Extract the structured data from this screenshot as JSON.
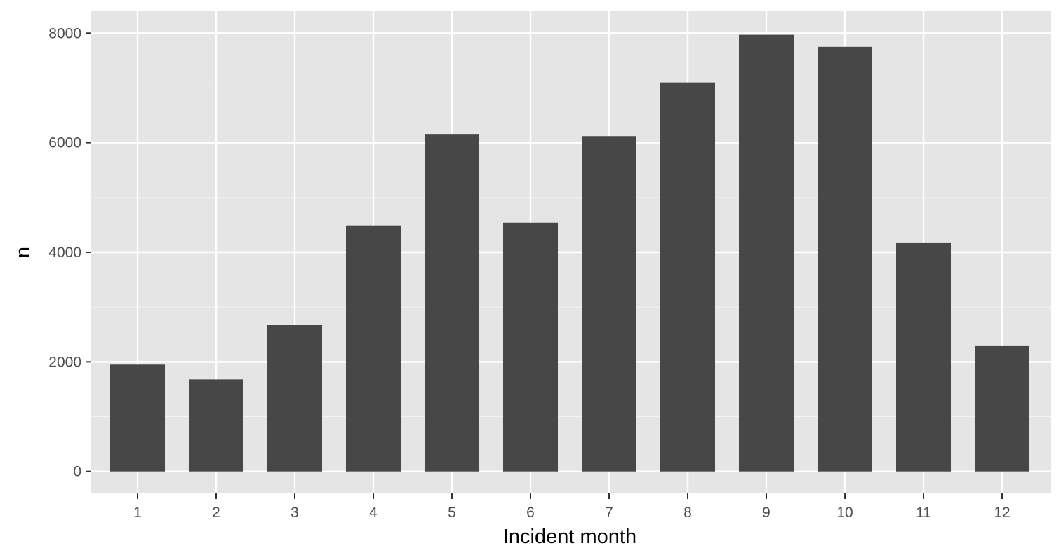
{
  "chart_data": {
    "type": "bar",
    "xlabel": "Incident month",
    "ylabel": "n",
    "categories": [
      "1",
      "2",
      "3",
      "4",
      "5",
      "6",
      "7",
      "8",
      "9",
      "10",
      "11",
      "12"
    ],
    "values": [
      1950,
      1680,
      2680,
      4490,
      6160,
      4540,
      6120,
      7100,
      7970,
      7750,
      4180,
      2300
    ],
    "ylim": [
      -400,
      8400
    ],
    "yticks": [
      0,
      2000,
      4000,
      6000,
      8000
    ],
    "ytick_labels": [
      "0",
      "2000",
      "4000",
      "6000",
      "8000"
    ],
    "grid": true,
    "legend": "none"
  },
  "colors": {
    "panel_background": "#e5e5e5",
    "grid_major": "#ffffff",
    "grid_minor": "#f2f2f2",
    "bar_fill": "#474747",
    "tick": "#333333"
  }
}
